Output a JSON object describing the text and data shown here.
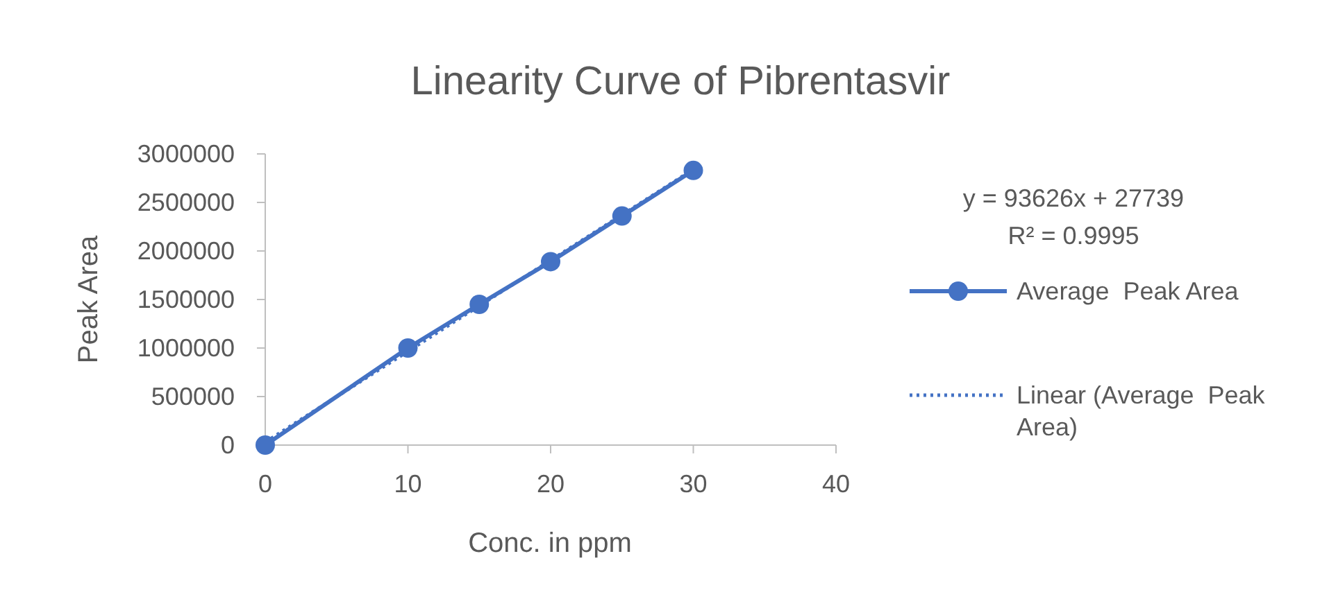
{
  "chart_data": {
    "type": "line",
    "title": "Linearity Curve of Pibrentasvir",
    "xlabel": "Conc. in ppm",
    "ylabel": "Peak Area",
    "x": [
      0,
      10,
      15,
      20,
      25,
      30
    ],
    "series": [
      {
        "name": "Average  Peak Area",
        "color": "#4472c4",
        "values": [
          0,
          1000000,
          1450000,
          1890000,
          2360000,
          2830000
        ],
        "marker": "circle",
        "line_style": "solid"
      },
      {
        "name": "Linear (Average  Peak Area)",
        "type": "line",
        "color": "#4472c4",
        "x": [
          0,
          30
        ],
        "values": [
          30000,
          2840000
        ],
        "marker": "none",
        "line_style": "dotted"
      }
    ],
    "annotations": [
      "y = 93626x + 27739",
      "R² = 0.9995"
    ],
    "xlim": [
      0,
      40
    ],
    "xticks": [
      0,
      10,
      20,
      30,
      40
    ],
    "ylim": [
      0,
      3000000
    ],
    "yticks": [
      0,
      500000,
      1000000,
      1500000,
      2000000,
      2500000,
      3000000
    ],
    "legend": "right"
  }
}
